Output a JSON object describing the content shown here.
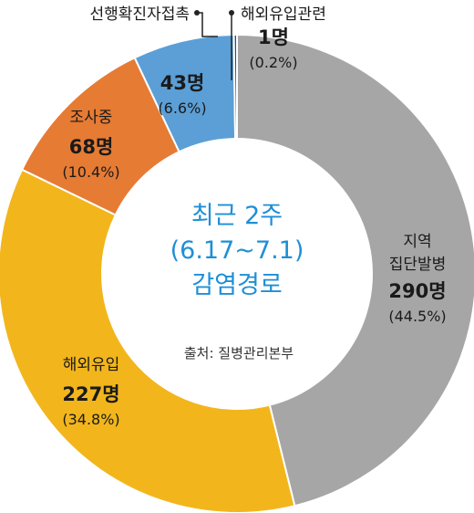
{
  "chart_data": {
    "type": "pie",
    "donut": true,
    "center_title_lines": [
      "최근 2주",
      "(6.17~7.1)",
      "감염경로"
    ],
    "source": "출처: 질병관리본부",
    "slices": [
      {
        "name_lines": [
          "지역",
          "집단발병"
        ],
        "count_label": "290명",
        "percent_label": "(44.5%)",
        "value": 44.5,
        "color": "#a6a6a6"
      },
      {
        "name_lines": [
          "해외유입"
        ],
        "count_label": "227명",
        "percent_label": "(34.8%)",
        "value": 34.8,
        "color": "#f2b61c"
      },
      {
        "name_lines": [
          "조사중"
        ],
        "count_label": "68명",
        "percent_label": "(10.4%)",
        "value": 10.4,
        "color": "#e67b34"
      },
      {
        "name_lines": [
          "선행확진자접촉"
        ],
        "count_label": "43명",
        "percent_label": "(6.6%)",
        "value": 6.6,
        "color": "#5b9fd6"
      },
      {
        "name_lines": [
          "해외유입관련"
        ],
        "count_label": "1명",
        "percent_label": "(0.2%)",
        "value": 0.2,
        "color": "#1e4f82"
      }
    ]
  }
}
